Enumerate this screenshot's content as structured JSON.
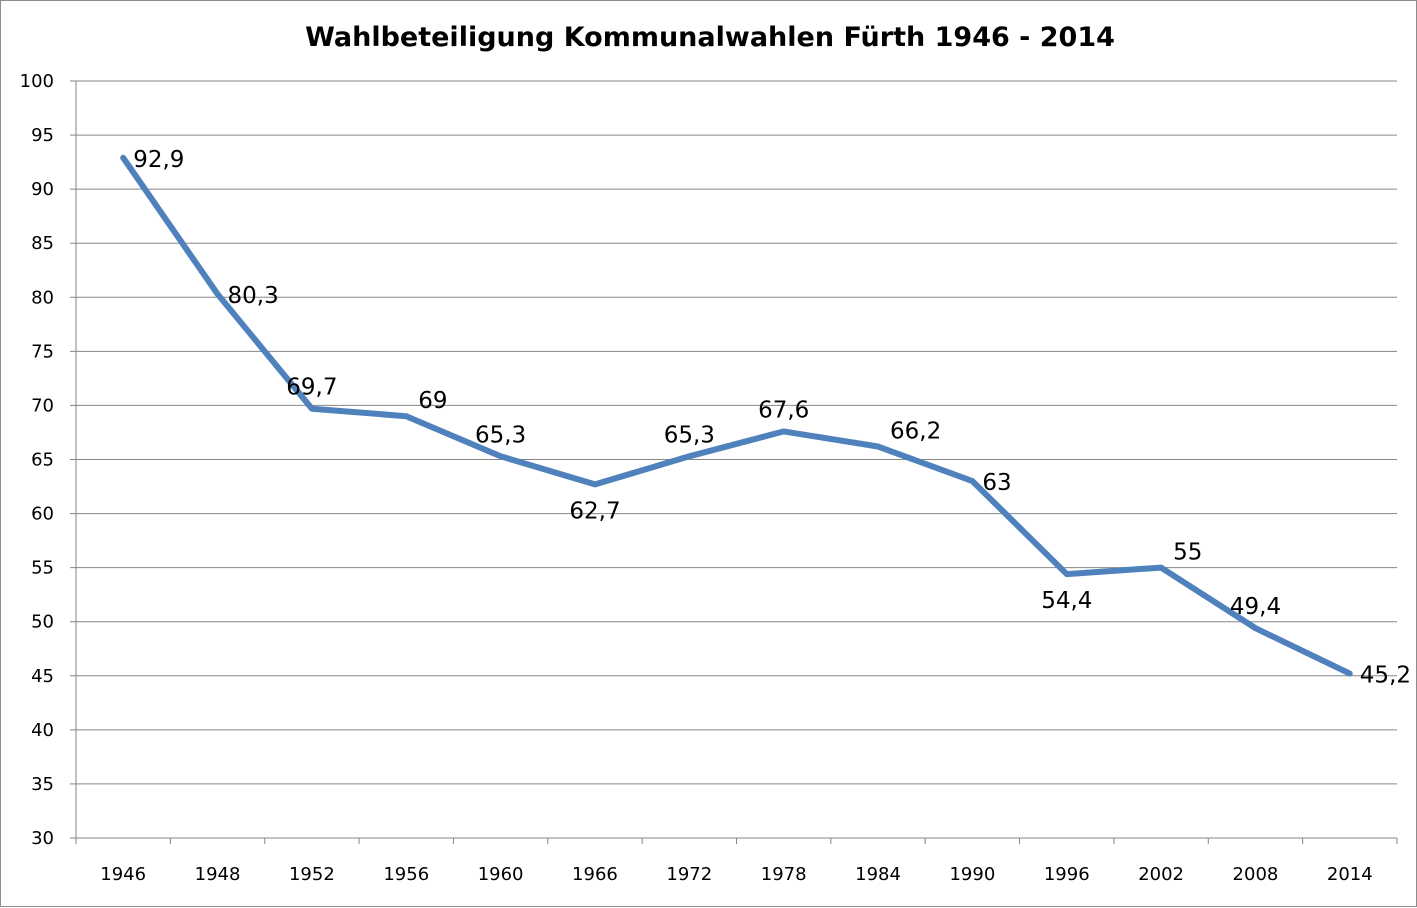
{
  "chart_data": {
    "type": "line",
    "title": "Wahlbeteiligung Kommunalwahlen Fürth 1946 - 2014",
    "xlabel": "",
    "ylabel": "",
    "categories": [
      "1946",
      "1948",
      "1952",
      "1956",
      "1960",
      "1966",
      "1972",
      "1978",
      "1984",
      "1990",
      "1996",
      "2002",
      "2008",
      "2014"
    ],
    "series": [
      {
        "name": "Wahlbeteiligung",
        "color": "#4f81bd",
        "values": [
          92.9,
          80.3,
          69.7,
          69,
          65.3,
          62.7,
          65.3,
          67.6,
          66.2,
          63,
          54.4,
          55,
          49.4,
          45.2
        ],
        "labels": [
          "92,9",
          "80,3",
          "69,7",
          "69",
          "65,3",
          "62,7",
          "65,3",
          "67,6",
          "66,2",
          "63",
          "54,4",
          "55",
          "49,4",
          "45,2"
        ],
        "label_positions": [
          "right",
          "right",
          "above",
          "above-right",
          "above",
          "below",
          "above",
          "above",
          "above-right",
          "right",
          "below",
          "above-right",
          "above",
          "right"
        ]
      }
    ],
    "ylim": [
      30,
      100
    ],
    "yticks": [
      30,
      35,
      40,
      45,
      50,
      55,
      60,
      65,
      70,
      75,
      80,
      85,
      90,
      95,
      100
    ],
    "ytick_labels": [
      "30",
      "35",
      "40",
      "45",
      "50",
      "55",
      "60",
      "65",
      "70",
      "75",
      "80",
      "85",
      "90",
      "95",
      "100"
    ],
    "grid": true,
    "legend": "none",
    "gridline_color": "#868686",
    "axis_color": "#868686"
  }
}
